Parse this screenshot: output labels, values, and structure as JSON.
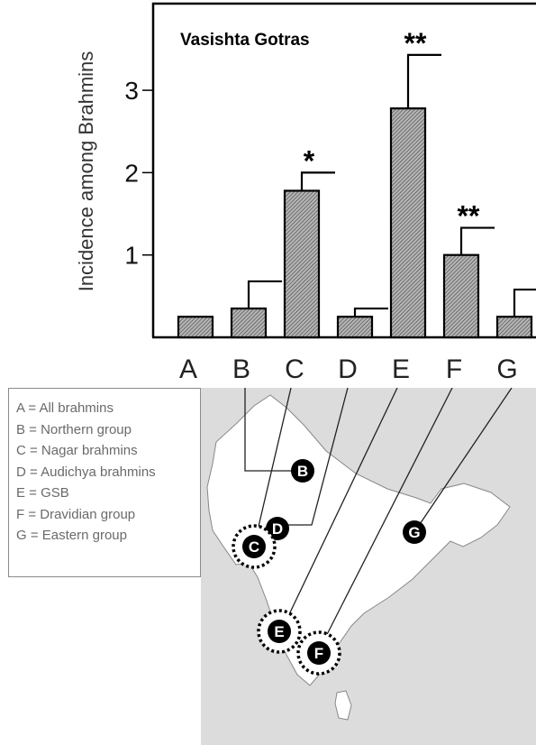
{
  "chart_data": {
    "type": "bar",
    "title": "Vasishta Gotras",
    "ylabel": "Incidence among Brahmins",
    "xlabel": "",
    "categories": [
      "A",
      "B",
      "C",
      "D",
      "E",
      "F",
      "G"
    ],
    "values": [
      0.25,
      0.35,
      1.78,
      0.25,
      2.78,
      1.0,
      0.25
    ],
    "error_upper": [
      0.25,
      0.68,
      2.0,
      0.35,
      3.43,
      1.33,
      0.58
    ],
    "significance": [
      "",
      "",
      "*",
      "",
      "**",
      "**",
      ""
    ],
    "yticks": [
      "1",
      "2",
      "3"
    ],
    "ylim": [
      0,
      3.9
    ],
    "grid": false,
    "bar_fill": "hatched grey",
    "bar_color": "#9a9a9a"
  },
  "legend": {
    "items": [
      "A = All brahmins",
      "B = Northern group",
      "C = Nagar brahmins",
      "D = Audichya brahmins",
      "E = GSB",
      "F = Dravidian group",
      "G = Eastern group"
    ]
  },
  "map": {
    "markers": [
      "B",
      "D",
      "C",
      "G",
      "E",
      "F"
    ],
    "highlighted_markers": [
      "C",
      "E",
      "F"
    ],
    "land_color": "#ffffff",
    "sea_color": "#dcdcdc"
  }
}
